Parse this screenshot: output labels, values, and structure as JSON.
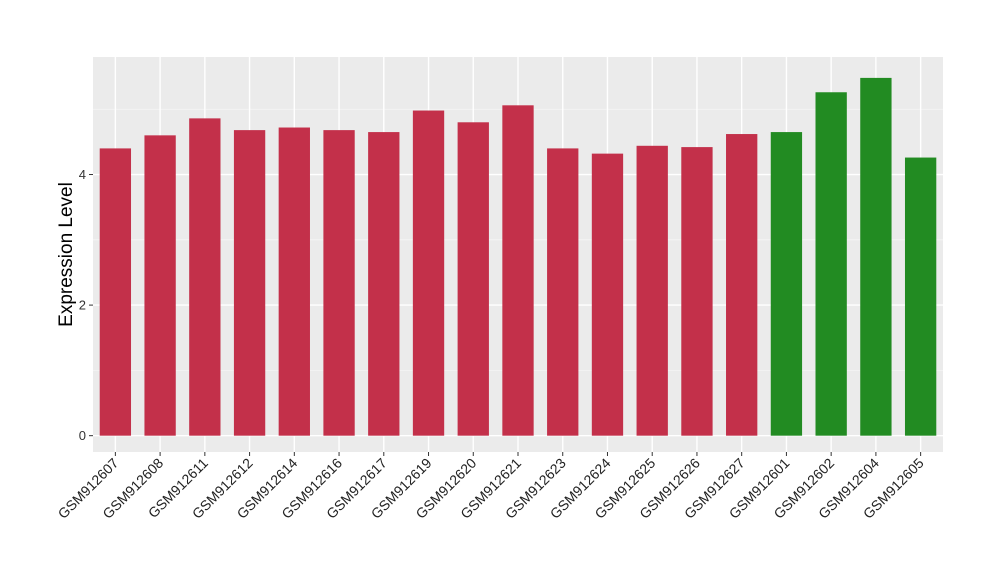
{
  "chart_data": {
    "type": "bar",
    "title": "",
    "xlabel": "",
    "ylabel": "Expression Level",
    "ylim": [
      -0.25,
      5.8
    ],
    "yticks": [
      0,
      2,
      4
    ],
    "grid": true,
    "categories": [
      "GSM912607",
      "GSM912608",
      "GSM912611",
      "GSM912612",
      "GSM912614",
      "GSM912616",
      "GSM912617",
      "GSM912619",
      "GSM912620",
      "GSM912621",
      "GSM912623",
      "GSM912624",
      "GSM912625",
      "GSM912626",
      "GSM912627",
      "GSM912601",
      "GSM912602",
      "GSM912604",
      "GSM912605"
    ],
    "values": [
      4.4,
      4.6,
      4.86,
      4.68,
      4.72,
      4.68,
      4.65,
      4.98,
      4.8,
      5.06,
      4.4,
      4.32,
      4.44,
      4.42,
      4.62,
      4.65,
      5.26,
      5.48,
      4.26
    ],
    "groups": [
      "a",
      "a",
      "a",
      "a",
      "a",
      "a",
      "a",
      "a",
      "a",
      "a",
      "a",
      "a",
      "a",
      "a",
      "a",
      "b",
      "b",
      "b",
      "b"
    ],
    "colors": {
      "a": "#c3304a",
      "b": "#228b22"
    }
  }
}
